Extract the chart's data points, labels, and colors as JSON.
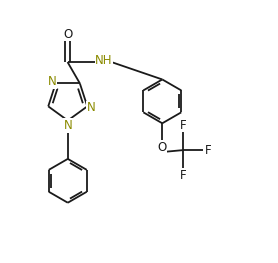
{
  "bg_color": "#ffffff",
  "bond_color": "#1a1a1a",
  "nitrogen_color": "#8b8b00",
  "oxygen_color": "#1a1a1a",
  "figsize": [
    2.78,
    2.63
  ],
  "dpi": 100,
  "line_width": 1.3,
  "font_size": 8.5,
  "xlim": [
    0,
    10
  ],
  "ylim": [
    0,
    9.5
  ]
}
